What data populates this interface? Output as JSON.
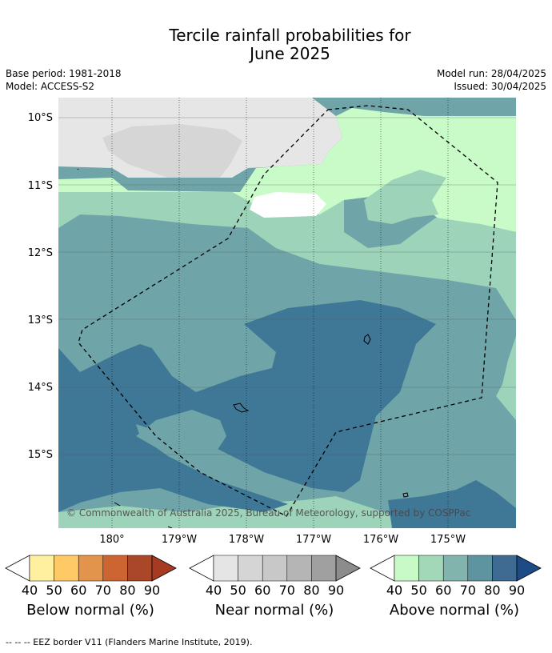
{
  "title_line1": "Tercile rainfall probabilities for",
  "title_line2": "June 2025",
  "base_period": "Base period: 1981-2018",
  "model": "Model: ACCESS-S2",
  "model_run": "Model run: 28/04/2025",
  "issued": "Issued: 30/04/2025",
  "lat_labels": [
    "10°S",
    "11°S",
    "12°S",
    "13°S",
    "14°S",
    "15°S"
  ],
  "lon_labels": [
    "180°",
    "179°W",
    "178°W",
    "177°W",
    "176°W",
    "175°W"
  ],
  "copyright": "© Commonwealth of Australia 2025, Bureau of Meteorology, supported by COSPPac",
  "colorbars": [
    {
      "label": "Below normal (%)",
      "ticks": [
        "40",
        "50",
        "60",
        "70",
        "80",
        "90"
      ],
      "colors": [
        "#ffffff",
        "#fff0a0",
        "#ffca66",
        "#e3944c",
        "#cd6533",
        "#ab4729",
        "#a63a22"
      ]
    },
    {
      "label": "Near normal (%)",
      "ticks": [
        "40",
        "50",
        "60",
        "70",
        "80",
        "90"
      ],
      "colors": [
        "#ffffff",
        "#e5e5e5",
        "#d5d5d5",
        "#c8c8c8",
        "#b5b5b5",
        "#a0a0a0",
        "#8c8c8c"
      ]
    },
    {
      "label": "Above normal (%)",
      "ticks": [
        "40",
        "50",
        "60",
        "70",
        "80",
        "90"
      ],
      "colors": [
        "#ffffff",
        "#c8fac8",
        "#a2d8b8",
        "#80b4ac",
        "#5e93a0",
        "#3f6a92",
        "#1c4b86"
      ]
    }
  ],
  "footer": "--  --  -- EEZ border V11 (Flanders Marine Institute, 2019)."
}
